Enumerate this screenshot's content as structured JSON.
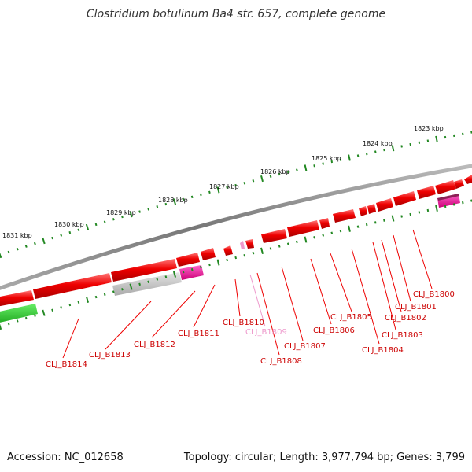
{
  "title": "Clostridium botulinum Ba4 str. 657, complete genome",
  "footer": {
    "accession": "Accession: NC_012658",
    "topology": "Topology: circular; Length: 3,977,794 bp; Genes: 3,799"
  },
  "colors": {
    "backbone": "#888888",
    "gene_forward": "#ee0000",
    "gene_label": "#cc0000",
    "gene_label_highlight": "#ee99cc",
    "ticks": "#228822",
    "pseudo": "#bbbbbb",
    "rna": "#ee1199",
    "other_feature": "#33bb33"
  },
  "axis": {
    "unit": "kbp",
    "ticks": [
      {
        "label": "1823 kbp"
      },
      {
        "label": "1824 kbp"
      },
      {
        "label": "1825 kbp"
      },
      {
        "label": "1826 kbp"
      },
      {
        "label": "1827 kbp"
      },
      {
        "label": "1828 kbp"
      },
      {
        "label": "1829 kbp"
      },
      {
        "label": "1830 kbp"
      },
      {
        "label": "1831 kbp"
      }
    ]
  },
  "genes": [
    {
      "label": "CLJ_B1800",
      "highlight": false
    },
    {
      "label": "CLJ_B1801",
      "highlight": false
    },
    {
      "label": "CLJ_B1802",
      "highlight": false
    },
    {
      "label": "CLJ_B1803",
      "highlight": false
    },
    {
      "label": "CLJ_B1804",
      "highlight": false
    },
    {
      "label": "CLJ_B1805",
      "highlight": false
    },
    {
      "label": "CLJ_B1806",
      "highlight": false
    },
    {
      "label": "CLJ_B1807",
      "highlight": false
    },
    {
      "label": "CLJ_B1808",
      "highlight": false
    },
    {
      "label": "CLJ_B1809",
      "highlight": true
    },
    {
      "label": "CLJ_B1810",
      "highlight": false
    },
    {
      "label": "CLJ_B1811",
      "highlight": false
    },
    {
      "label": "CLJ_B1812",
      "highlight": false
    },
    {
      "label": "CLJ_B1813",
      "highlight": false
    },
    {
      "label": "CLJ_B1814",
      "highlight": false
    }
  ]
}
